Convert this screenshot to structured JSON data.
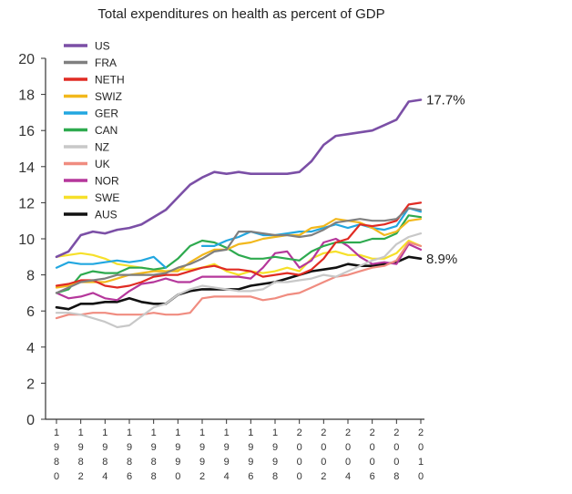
{
  "chart_data": {
    "type": "line",
    "title": "Total expenditures on health as percent of GDP",
    "xlabel": "",
    "ylabel": "",
    "ylim": [
      0,
      20
    ],
    "yticks": [
      "0",
      "2",
      "4",
      "6",
      "8",
      "10",
      "12",
      "14",
      "16",
      "18",
      "20"
    ],
    "x": [
      1980,
      1981,
      1982,
      1983,
      1984,
      1985,
      1986,
      1987,
      1988,
      1989,
      1990,
      1991,
      1992,
      1993,
      1994,
      1995,
      1996,
      1997,
      1998,
      1999,
      2000,
      2001,
      2002,
      2003,
      2004,
      2005,
      2006,
      2007,
      2008,
      2009,
      2010
    ],
    "xticks": [
      "1980",
      "1982",
      "1984",
      "1986",
      "1988",
      "1990",
      "1992",
      "1994",
      "1996",
      "1998",
      "2000",
      "2002",
      "2004",
      "2006",
      "2008",
      "2010"
    ],
    "series": [
      {
        "name": "US",
        "color": "#7b4fa6",
        "values": [
          9.0,
          9.3,
          10.2,
          10.4,
          10.3,
          10.5,
          10.6,
          10.8,
          11.2,
          11.6,
          12.3,
          13.0,
          13.4,
          13.7,
          13.6,
          13.7,
          13.6,
          13.6,
          13.6,
          13.6,
          13.7,
          14.3,
          15.2,
          15.7,
          15.8,
          15.9,
          16.0,
          16.3,
          16.6,
          17.6,
          17.7
        ]
      },
      {
        "name": "FRA",
        "color": "#7f7f7f",
        "values": [
          7.0,
          7.3,
          7.6,
          7.7,
          7.8,
          8.0,
          8.0,
          8.0,
          8.0,
          8.1,
          8.4,
          8.6,
          8.9,
          9.3,
          9.4,
          10.4,
          10.4,
          10.3,
          10.2,
          10.2,
          10.1,
          10.2,
          10.5,
          10.9,
          11.0,
          11.1,
          11.0,
          11.0,
          11.1,
          11.7,
          11.6
        ]
      },
      {
        "name": "NETH",
        "color": "#e02b23",
        "values": [
          7.4,
          7.5,
          7.7,
          7.7,
          7.4,
          7.3,
          7.4,
          7.6,
          7.9,
          8.0,
          8.0,
          8.2,
          8.4,
          8.5,
          8.3,
          8.3,
          8.2,
          7.9,
          8.0,
          8.1,
          8.0,
          8.3,
          8.9,
          9.8,
          10.0,
          10.8,
          10.7,
          10.8,
          11.0,
          11.9,
          12.0
        ]
      },
      {
        "name": "SWIZ",
        "color": "#f2b81c",
        "values": [
          7.3,
          7.4,
          7.6,
          7.6,
          7.6,
          7.8,
          8.0,
          8.1,
          8.2,
          8.2,
          8.2,
          8.7,
          9.1,
          9.4,
          9.4,
          9.7,
          9.8,
          10.0,
          10.1,
          10.2,
          10.2,
          10.6,
          10.7,
          11.1,
          11.0,
          10.9,
          10.6,
          10.2,
          10.4,
          11.0,
          11.1
        ]
      },
      {
        "name": "GER",
        "color": "#22a7e0",
        "values": [
          8.4,
          8.7,
          8.6,
          8.6,
          8.7,
          8.8,
          8.7,
          8.8,
          9.0,
          8.4,
          null,
          null,
          9.6,
          9.6,
          9.9,
          10.1,
          10.4,
          10.2,
          10.2,
          10.3,
          10.4,
          10.4,
          10.6,
          10.8,
          10.6,
          10.8,
          10.6,
          10.5,
          10.7,
          11.7,
          11.5
        ]
      },
      {
        "name": "CAN",
        "color": "#2eaa4f",
        "values": [
          7.0,
          7.2,
          8.0,
          8.2,
          8.1,
          8.1,
          8.4,
          8.4,
          8.3,
          8.4,
          8.9,
          9.6,
          9.9,
          9.8,
          9.5,
          9.1,
          8.9,
          8.9,
          9.0,
          8.9,
          8.8,
          9.3,
          9.6,
          9.8,
          9.8,
          9.8,
          10.0,
          10.0,
          10.3,
          11.3,
          11.2
        ]
      },
      {
        "name": "NZ",
        "color": "#c8c8c8",
        "values": [
          5.9,
          5.9,
          5.8,
          5.6,
          5.4,
          5.1,
          5.2,
          5.7,
          6.2,
          6.4,
          6.9,
          7.2,
          7.4,
          7.3,
          7.2,
          7.1,
          7.1,
          7.2,
          7.6,
          7.6,
          7.7,
          7.8,
          8.0,
          7.9,
          8.2,
          8.5,
          8.8,
          9.0,
          9.7,
          10.1,
          10.3
        ]
      },
      {
        "name": "UK",
        "color": "#f08c80",
        "values": [
          5.6,
          5.8,
          5.8,
          5.9,
          5.9,
          5.8,
          5.8,
          5.8,
          5.9,
          5.8,
          5.8,
          5.9,
          6.7,
          6.8,
          6.8,
          6.8,
          6.8,
          6.6,
          6.7,
          6.9,
          7.0,
          7.3,
          7.6,
          7.9,
          8.0,
          8.2,
          8.4,
          8.5,
          8.8,
          9.8,
          9.6
        ]
      },
      {
        "name": "NOR",
        "color": "#b5379b",
        "values": [
          7.0,
          6.7,
          6.8,
          7.0,
          6.7,
          6.6,
          7.1,
          7.5,
          7.6,
          7.8,
          7.6,
          7.6,
          7.9,
          7.9,
          7.9,
          7.9,
          7.8,
          8.4,
          9.2,
          9.3,
          8.4,
          8.8,
          9.8,
          10.0,
          9.6,
          9.0,
          8.6,
          8.7,
          8.6,
          9.7,
          9.4
        ]
      },
      {
        "name": "SWE",
        "color": "#f6e02a",
        "values": [
          9.0,
          9.1,
          9.2,
          9.1,
          8.9,
          8.6,
          8.5,
          8.4,
          8.3,
          8.2,
          8.3,
          8.3,
          8.4,
          8.6,
          8.2,
          8.0,
          8.2,
          8.1,
          8.2,
          8.4,
          8.2,
          8.9,
          9.2,
          9.3,
          9.1,
          9.1,
          8.9,
          8.9,
          9.2,
          9.9,
          9.6
        ]
      },
      {
        "name": "AUS",
        "color": "#111111",
        "values": [
          6.2,
          6.1,
          6.4,
          6.4,
          6.5,
          6.5,
          6.7,
          6.5,
          6.4,
          6.4,
          6.9,
          7.1,
          7.2,
          7.2,
          7.2,
          7.2,
          7.4,
          7.5,
          7.6,
          7.8,
          8.0,
          8.2,
          8.3,
          8.4,
          8.6,
          8.5,
          8.5,
          8.6,
          8.7,
          9.0,
          8.9
        ]
      }
    ],
    "annotations": [
      {
        "series": "US",
        "text": "17.7%"
      },
      {
        "series": "AUS",
        "text": "8.9%"
      }
    ],
    "grid": false,
    "legend": "top-left"
  }
}
